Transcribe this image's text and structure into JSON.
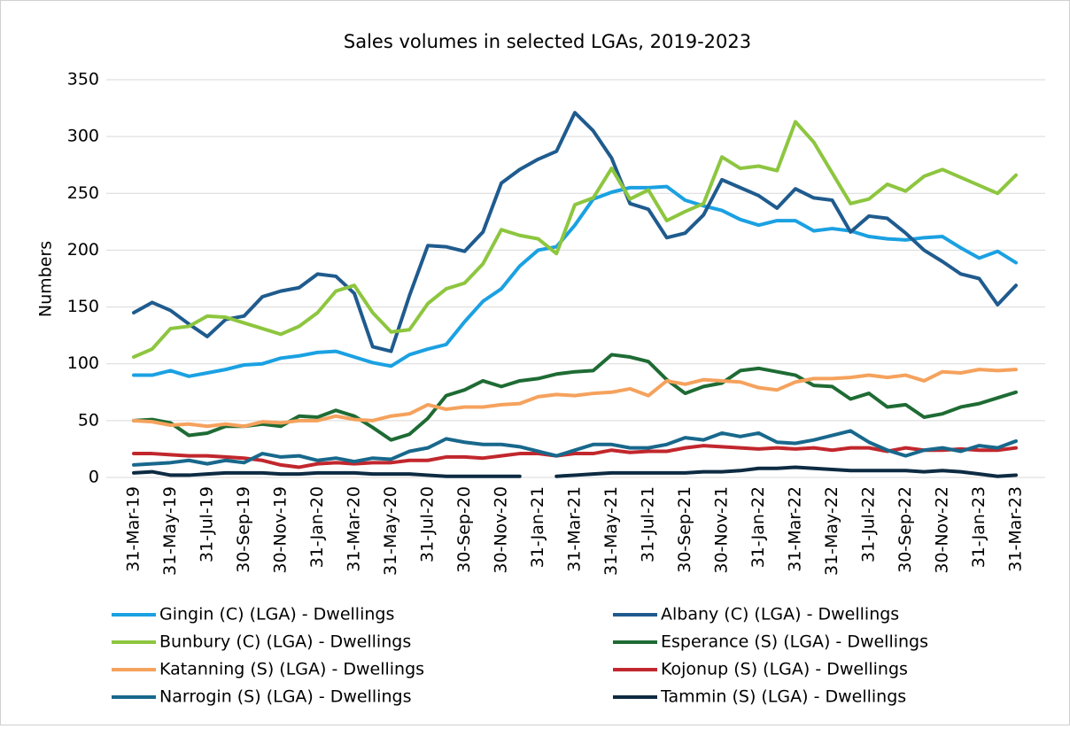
{
  "chart_data": {
    "type": "line",
    "title": "Sales volumes in selected LGAs, 2019-2023",
    "y_label": "Numbers",
    "categories": [
      "31-Mar-19",
      null,
      "31-May-19",
      null,
      "31-Jul-19",
      null,
      "30-Sep-19",
      null,
      "30-Nov-19",
      null,
      "31-Jan-20",
      null,
      "31-Mar-20",
      null,
      "31-May-20",
      null,
      "31-Jul-20",
      null,
      "30-Sep-20",
      null,
      "30-Nov-20",
      null,
      "31-Jan-21",
      null,
      "31-Mar-21",
      null,
      "31-May-21",
      null,
      "31-Jul-21",
      null,
      "30-Sep-21",
      null,
      "30-Nov-21",
      null,
      "31-Jan-22",
      null,
      "31-Mar-22",
      null,
      "31-May-22",
      null,
      "31-Jul-22",
      null,
      "30-Sep-22",
      null,
      "30-Nov-22",
      null,
      "31-Jan-23",
      null,
      "31-Mar-23"
    ],
    "ylim": [
      0,
      350
    ],
    "yticks": [
      0,
      50,
      100,
      150,
      200,
      250,
      300,
      350
    ],
    "grid": true,
    "legend": "bottom",
    "series": [
      {
        "name": "Gingin (C) (LGA) - Dwellings",
        "color": "#1ba1e2",
        "values": [
          90,
          90,
          94,
          89,
          92,
          95,
          99,
          100,
          105,
          107,
          110,
          111,
          106,
          101,
          98,
          108,
          113,
          117,
          137,
          155,
          166,
          186,
          200,
          203,
          222,
          245,
          251,
          255,
          255,
          256,
          244,
          239,
          235,
          227,
          222,
          226,
          226,
          217,
          219,
          217,
          212,
          210,
          209,
          211,
          212,
          202,
          193,
          199,
          189
        ]
      },
      {
        "name": "Albany (C) (LGA) - Dwellings",
        "color": "#1f5b8e",
        "values": [
          145,
          154,
          147,
          135,
          124,
          139,
          142,
          159,
          164,
          167,
          179,
          177,
          162,
          115,
          111,
          160,
          204,
          203,
          199,
          216,
          259,
          271,
          280,
          287,
          321,
          305,
          281,
          241,
          236,
          211,
          215,
          231,
          262,
          255,
          248,
          237,
          254,
          246,
          244,
          216,
          230,
          228,
          215,
          200,
          190,
          179,
          175,
          152,
          169
        ]
      },
      {
        "name": "Bunbury (C) (LGA) - Dwellings",
        "color": "#8dc63f",
        "values": [
          106,
          113,
          131,
          133,
          142,
          141,
          136,
          131,
          126,
          133,
          145,
          164,
          169,
          145,
          128,
          130,
          153,
          166,
          171,
          188,
          218,
          213,
          210,
          197,
          240,
          246,
          272,
          245,
          253,
          226,
          234,
          241,
          282,
          272,
          274,
          270,
          313,
          295,
          268,
          241,
          245,
          258,
          252,
          265,
          271,
          264,
          257,
          250,
          266
        ]
      },
      {
        "name": "Esperance (S) (LGA) - Dwellings",
        "color": "#1e6b34",
        "values": [
          50,
          51,
          48,
          37,
          39,
          45,
          45,
          47,
          45,
          54,
          53,
          59,
          54,
          44,
          33,
          38,
          52,
          72,
          77,
          85,
          80,
          85,
          87,
          91,
          93,
          94,
          108,
          106,
          102,
          86,
          74,
          80,
          83,
          94,
          96,
          93,
          90,
          81,
          80,
          69,
          74,
          62,
          64,
          53,
          56,
          62,
          65,
          70,
          75
        ]
      },
      {
        "name": "Katanning (S) (LGA) - Dwellings",
        "color": "#f5a25d",
        "values": [
          50,
          49,
          46,
          47,
          45,
          47,
          45,
          49,
          48,
          50,
          50,
          54,
          51,
          50,
          54,
          56,
          64,
          60,
          62,
          62,
          64,
          65,
          71,
          73,
          72,
          74,
          75,
          78,
          72,
          85,
          82,
          86,
          85,
          84,
          79,
          77,
          84,
          87,
          87,
          88,
          90,
          88,
          90,
          85,
          93,
          92,
          95,
          94,
          95
        ]
      },
      {
        "name": "Kojonup (S) (LGA) - Dwellings",
        "color": "#c1272d",
        "values": [
          21,
          21,
          20,
          19,
          19,
          18,
          17,
          15,
          11,
          9,
          12,
          13,
          12,
          13,
          13,
          15,
          15,
          18,
          18,
          17,
          19,
          21,
          21,
          19,
          21,
          21,
          24,
          22,
          23,
          23,
          26,
          28,
          27,
          26,
          25,
          26,
          25,
          26,
          24,
          26,
          26,
          23,
          26,
          24,
          24,
          25,
          24,
          24,
          26
        ]
      },
      {
        "name": "Narrogin (S) (LGA) - Dwellings",
        "color": "#18688c",
        "values": [
          11,
          12,
          13,
          15,
          12,
          15,
          13,
          21,
          18,
          19,
          15,
          17,
          14,
          17,
          16,
          23,
          26,
          34,
          31,
          29,
          29,
          27,
          23,
          19,
          24,
          29,
          29,
          26,
          26,
          29,
          35,
          33,
          39,
          36,
          39,
          31,
          30,
          33,
          37,
          41,
          31,
          24,
          19,
          24,
          26,
          23,
          28,
          26,
          32
        ]
      },
      {
        "name": "Tammin (S) (LGA) - Dwellings",
        "color": "#0d2b42",
        "values": [
          4,
          5,
          2,
          2,
          3,
          4,
          4,
          4,
          3,
          3,
          4,
          4,
          4,
          3,
          3,
          3,
          2,
          1,
          1,
          1,
          1,
          1,
          null,
          1,
          2,
          3,
          4,
          4,
          4,
          4,
          4,
          5,
          5,
          6,
          8,
          8,
          9,
          8,
          7,
          6,
          6,
          6,
          6,
          5,
          6,
          5,
          3,
          1,
          2
        ]
      }
    ]
  }
}
